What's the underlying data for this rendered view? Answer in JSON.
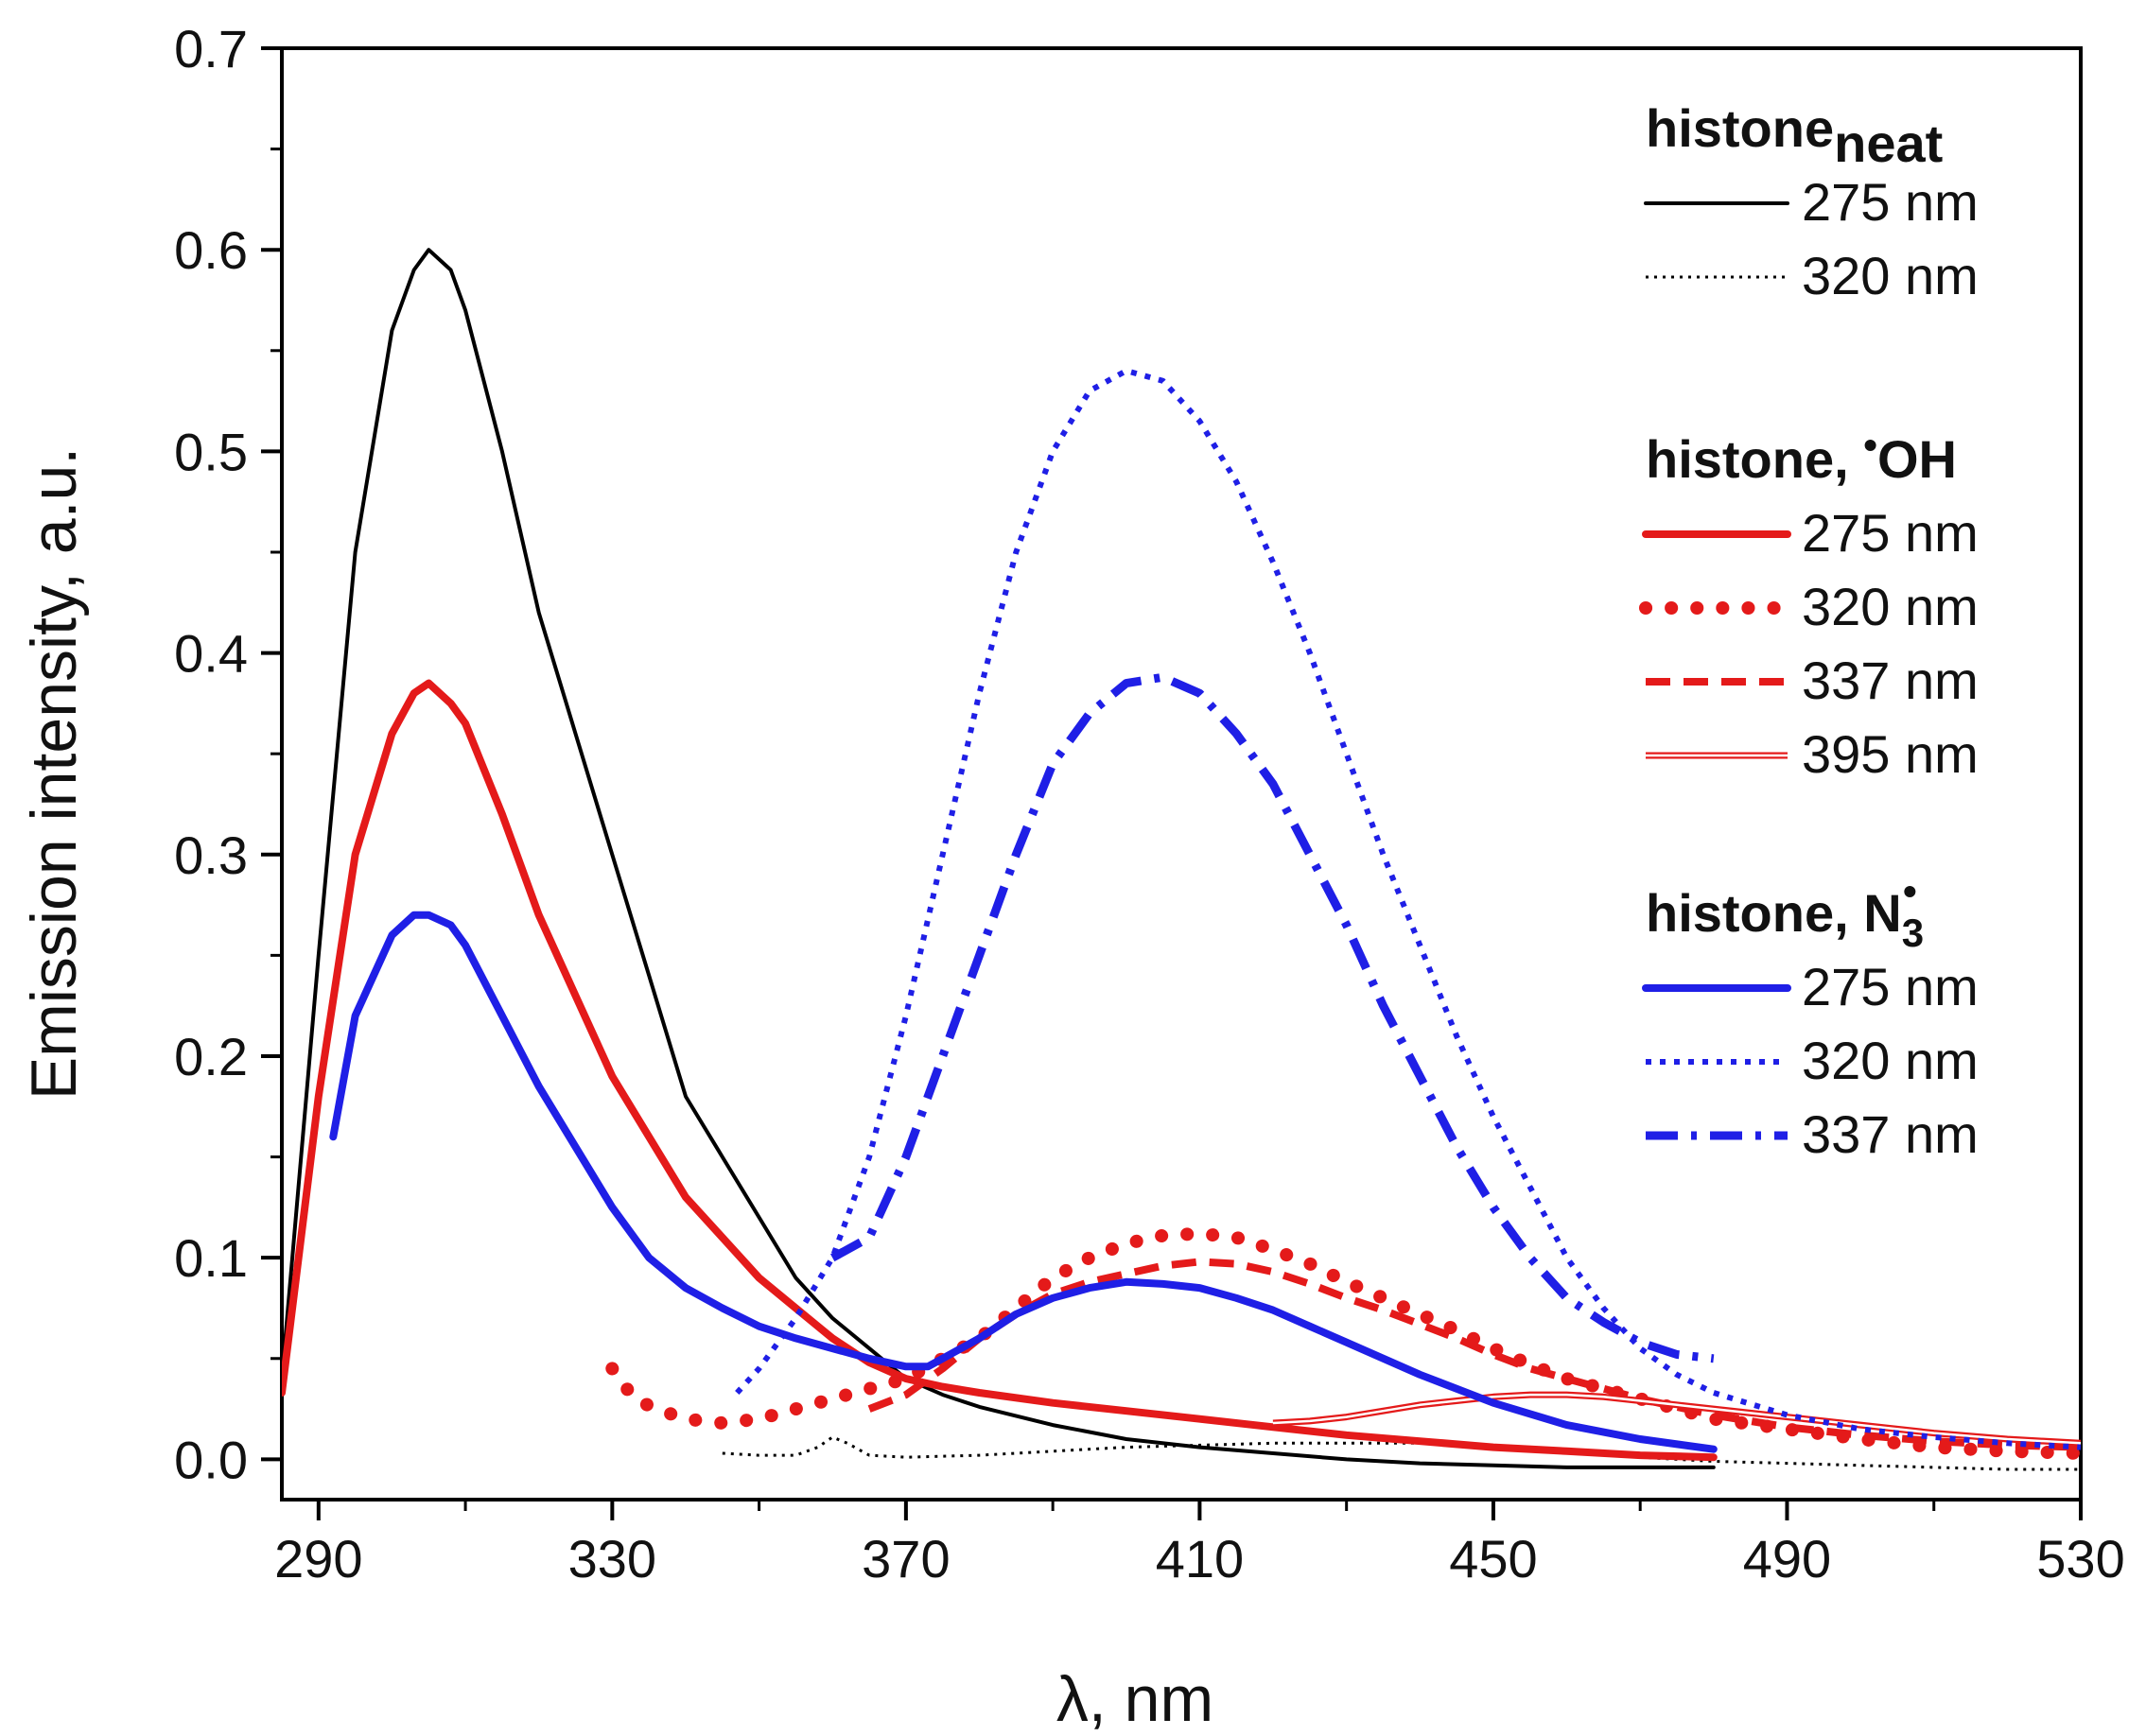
{
  "chart_data": {
    "type": "line",
    "title": "",
    "xlabel": "λ, nm",
    "ylabel": "Emission intensity, a.u.",
    "xlim": [
      285,
      530
    ],
    "ylim": [
      -0.02,
      0.7
    ],
    "xticks": [
      290,
      330,
      370,
      410,
      450,
      490,
      530
    ],
    "xtick_labels": [
      "290",
      "330",
      "370",
      "410",
      "450",
      "490",
      "530"
    ],
    "yticks": [
      0.0,
      0.1,
      0.2,
      0.3,
      0.4,
      0.5,
      0.6,
      0.7
    ],
    "ytick_labels": [
      "0.0",
      "0.1",
      "0.2",
      "0.3",
      "0.4",
      "0.5",
      "0.6",
      "0.7"
    ],
    "grid": false,
    "legend_position": "top-right",
    "legend_groups": [
      {
        "title_main": "histone",
        "title_sub": "neat",
        "title_sup": "",
        "entries": [
          {
            "label": "275 nm",
            "series": "neat_275"
          },
          {
            "label": "320 nm",
            "series": "neat_320"
          }
        ]
      },
      {
        "title_main": "histone, ",
        "title_sup": "•",
        "title_after": "OH",
        "title_sub": "",
        "entries": [
          {
            "label": "275 nm",
            "series": "oh_275"
          },
          {
            "label": "320 nm",
            "series": "oh_320"
          },
          {
            "label": "337 nm",
            "series": "oh_337"
          },
          {
            "label": "395 nm",
            "series": "oh_395"
          }
        ]
      },
      {
        "title_main": "histone, N",
        "title_sub": "3",
        "title_sup": "•",
        "entries": [
          {
            "label": "275 nm",
            "series": "n3_275"
          },
          {
            "label": "320 nm",
            "series": "n3_320"
          },
          {
            "label": "337 nm",
            "series": "n3_337"
          }
        ]
      }
    ],
    "series": [
      {
        "id": "neat_275",
        "name": "histone neat, 275 nm",
        "color": "#000000",
        "style": "solid",
        "x": [
          285,
          290,
          295,
          300,
          303,
          305,
          308,
          310,
          315,
          320,
          325,
          330,
          335,
          340,
          345,
          350,
          355,
          360,
          365,
          370,
          375,
          380,
          390,
          400,
          410,
          420,
          430,
          440,
          450,
          460,
          470,
          480
        ],
        "y": [
          0.04,
          0.25,
          0.45,
          0.56,
          0.59,
          0.6,
          0.59,
          0.57,
          0.5,
          0.42,
          0.36,
          0.3,
          0.24,
          0.18,
          0.15,
          0.12,
          0.09,
          0.07,
          0.055,
          0.04,
          0.032,
          0.026,
          0.017,
          0.01,
          0.006,
          0.003,
          0.0,
          -0.002,
          -0.003,
          -0.004,
          -0.004,
          -0.004
        ]
      },
      {
        "id": "neat_320",
        "name": "histone neat, 320 nm",
        "color": "#000000",
        "style": "dotted-thin",
        "x": [
          345,
          350,
          355,
          358,
          360,
          362,
          365,
          370,
          380,
          390,
          400,
          410,
          420,
          430,
          440,
          450,
          460,
          470,
          480,
          490,
          500,
          510,
          520,
          530
        ],
        "y": [
          0.003,
          0.002,
          0.002,
          0.006,
          0.011,
          0.008,
          0.002,
          0.001,
          0.002,
          0.004,
          0.006,
          0.007,
          0.008,
          0.008,
          0.008,
          0.006,
          0.003,
          0.001,
          -0.001,
          -0.002,
          -0.003,
          -0.004,
          -0.005,
          -0.005
        ]
      },
      {
        "id": "oh_275",
        "name": "histone •OH, 275 nm",
        "color": "#e41a1a",
        "style": "solid-thick",
        "x": [
          285,
          290,
          295,
          300,
          303,
          305,
          308,
          310,
          315,
          320,
          325,
          330,
          335,
          340,
          345,
          350,
          355,
          360,
          365,
          370,
          375,
          380,
          390,
          400,
          410,
          420,
          430,
          440,
          450,
          460,
          470,
          480
        ],
        "y": [
          0.033,
          0.18,
          0.3,
          0.36,
          0.38,
          0.385,
          0.375,
          0.365,
          0.32,
          0.27,
          0.23,
          0.19,
          0.16,
          0.13,
          0.11,
          0.09,
          0.075,
          0.06,
          0.048,
          0.04,
          0.036,
          0.033,
          0.028,
          0.024,
          0.02,
          0.016,
          0.012,
          0.009,
          0.006,
          0.004,
          0.002,
          0.001
        ]
      },
      {
        "id": "oh_320",
        "name": "histone •OH, 320 nm",
        "color": "#e41a1a",
        "style": "dotted-thick",
        "x": [
          330,
          333,
          336,
          340,
          345,
          350,
          355,
          360,
          365,
          370,
          375,
          380,
          385,
          390,
          395,
          400,
          405,
          410,
          415,
          420,
          425,
          430,
          435,
          440,
          445,
          450,
          455,
          460,
          465,
          470,
          480,
          490,
          500,
          510,
          520,
          530
        ],
        "y": [
          0.045,
          0.03,
          0.025,
          0.02,
          0.018,
          0.02,
          0.025,
          0.03,
          0.035,
          0.04,
          0.05,
          0.06,
          0.075,
          0.09,
          0.1,
          0.107,
          0.111,
          0.112,
          0.11,
          0.104,
          0.097,
          0.088,
          0.08,
          0.072,
          0.064,
          0.055,
          0.047,
          0.04,
          0.035,
          0.03,
          0.02,
          0.015,
          0.01,
          0.006,
          0.004,
          0.003
        ]
      },
      {
        "id": "oh_337",
        "name": "histone •OH, 337 nm",
        "color": "#e41a1a",
        "style": "dashed",
        "x": [
          365,
          370,
          375,
          380,
          385,
          390,
          395,
          400,
          405,
          410,
          415,
          420,
          425,
          430,
          435,
          440,
          445,
          450,
          455,
          460,
          465,
          470,
          480,
          490,
          500,
          510,
          520,
          530
        ],
        "y": [
          0.025,
          0.032,
          0.045,
          0.06,
          0.072,
          0.082,
          0.088,
          0.092,
          0.096,
          0.098,
          0.097,
          0.093,
          0.087,
          0.08,
          0.074,
          0.067,
          0.06,
          0.052,
          0.045,
          0.04,
          0.035,
          0.03,
          0.022,
          0.016,
          0.012,
          0.009,
          0.007,
          0.006
        ]
      },
      {
        "id": "oh_395",
        "name": "histone •OH, 395 nm",
        "color": "#e41a1a",
        "style": "double",
        "x": [
          420,
          425,
          430,
          435,
          440,
          445,
          450,
          455,
          460,
          465,
          470,
          475,
          480,
          490,
          500,
          510,
          520,
          530
        ],
        "y": [
          0.018,
          0.019,
          0.021,
          0.024,
          0.027,
          0.029,
          0.031,
          0.032,
          0.032,
          0.031,
          0.029,
          0.027,
          0.025,
          0.021,
          0.017,
          0.013,
          0.01,
          0.008
        ]
      },
      {
        "id": "n3_275",
        "name": "histone N3•, 275 nm",
        "color": "#1f1fe6",
        "style": "solid-thick",
        "x": [
          292,
          295,
          300,
          303,
          305,
          308,
          310,
          315,
          320,
          325,
          330,
          335,
          340,
          345,
          350,
          355,
          360,
          365,
          370,
          373,
          375,
          380,
          385,
          390,
          395,
          400,
          405,
          410,
          415,
          420,
          425,
          430,
          440,
          450,
          460,
          470,
          480
        ],
        "y": [
          0.16,
          0.22,
          0.26,
          0.27,
          0.27,
          0.265,
          0.255,
          0.22,
          0.185,
          0.155,
          0.125,
          0.1,
          0.085,
          0.075,
          0.066,
          0.06,
          0.055,
          0.05,
          0.046,
          0.046,
          0.05,
          0.06,
          0.072,
          0.08,
          0.085,
          0.088,
          0.087,
          0.085,
          0.08,
          0.074,
          0.066,
          0.058,
          0.042,
          0.028,
          0.017,
          0.01,
          0.005
        ]
      },
      {
        "id": "n3_320",
        "name": "histone N3•, 320 nm",
        "color": "#1f1fe6",
        "style": "dotted",
        "x": [
          347,
          350,
          355,
          360,
          365,
          370,
          375,
          380,
          385,
          390,
          395,
          400,
          405,
          410,
          415,
          420,
          425,
          430,
          435,
          440,
          445,
          450,
          455,
          460,
          465,
          470,
          475,
          480,
          490,
          500,
          510,
          520,
          530
        ],
        "y": [
          0.033,
          0.045,
          0.07,
          0.1,
          0.15,
          0.22,
          0.3,
          0.38,
          0.45,
          0.5,
          0.53,
          0.54,
          0.535,
          0.515,
          0.485,
          0.445,
          0.4,
          0.35,
          0.3,
          0.255,
          0.21,
          0.17,
          0.135,
          0.1,
          0.075,
          0.055,
          0.042,
          0.033,
          0.022,
          0.015,
          0.011,
          0.008,
          0.006
        ]
      },
      {
        "id": "n3_337",
        "name": "histone N3•, 337 nm",
        "color": "#1f1fe6",
        "style": "dash-dot",
        "x": [
          360,
          365,
          370,
          375,
          380,
          385,
          390,
          395,
          400,
          405,
          410,
          415,
          420,
          425,
          430,
          435,
          440,
          445,
          450,
          455,
          460,
          465,
          470,
          475,
          480
        ],
        "y": [
          0.1,
          0.11,
          0.15,
          0.2,
          0.25,
          0.3,
          0.345,
          0.37,
          0.385,
          0.388,
          0.38,
          0.36,
          0.335,
          0.3,
          0.265,
          0.225,
          0.19,
          0.155,
          0.125,
          0.1,
          0.08,
          0.068,
          0.058,
          0.052,
          0.05
        ]
      }
    ]
  }
}
